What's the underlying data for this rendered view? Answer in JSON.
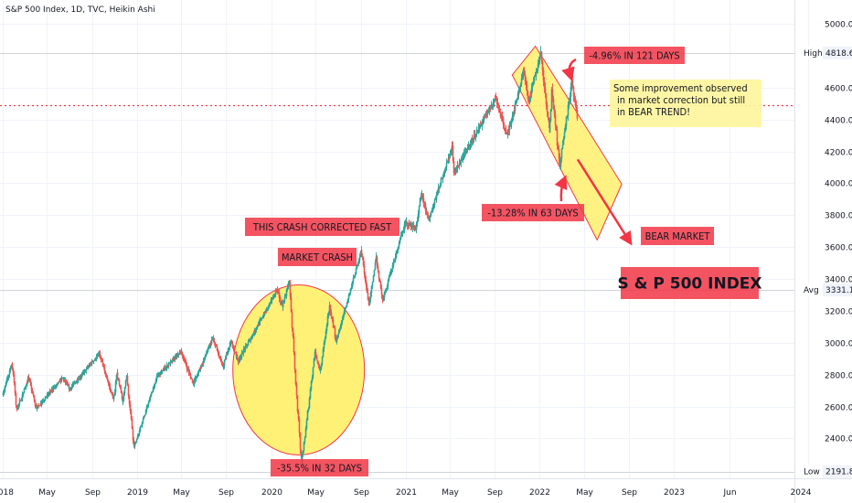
{
  "chart_data": {
    "type": "candlestick",
    "title": "S&P 500 Index, 1D, TVC, Heikin Ashi",
    "ylim": [
      2150,
      5150
    ],
    "y_ticks": [
      2400,
      2600,
      2800,
      3000,
      3200,
      3400,
      3600,
      3800,
      4000,
      4200,
      4400,
      4600,
      5000
    ],
    "y_tick_labels": [
      "2400.00",
      "2600.00",
      "2800.00",
      "3000.00",
      "3200.00",
      "3400.00",
      "3600.00",
      "3800.00",
      "4000.00",
      "4200.00",
      "4400.00",
      "4600.00",
      "5000.00"
    ],
    "x_range": [
      "2018-01-01",
      "2024-01-01"
    ],
    "x_ticks": [
      {
        "date": "2018-01-01",
        "label": "2018"
      },
      {
        "date": "2018-05-01",
        "label": "May"
      },
      {
        "date": "2018-09-01",
        "label": "Sep"
      },
      {
        "date": "2019-01-01",
        "label": "2019"
      },
      {
        "date": "2019-05-01",
        "label": "May"
      },
      {
        "date": "2019-09-01",
        "label": "Sep"
      },
      {
        "date": "2020-01-01",
        "label": "2020"
      },
      {
        "date": "2020-05-01",
        "label": "May"
      },
      {
        "date": "2020-09-01",
        "label": "Sep"
      },
      {
        "date": "2021-01-01",
        "label": "2021"
      },
      {
        "date": "2021-05-01",
        "label": "May"
      },
      {
        "date": "2021-09-01",
        "label": "Sep"
      },
      {
        "date": "2022-01-01",
        "label": "2022"
      },
      {
        "date": "2022-05-01",
        "label": "May"
      },
      {
        "date": "2022-09-01",
        "label": "Sep"
      },
      {
        "date": "2023-01-01",
        "label": "2023"
      },
      {
        "date": "2023-06-01",
        "label": "Jun"
      },
      {
        "date": "2024-01-01",
        "label": "2024"
      }
    ],
    "price_path": [
      [
        "2018-01-01",
        2680
      ],
      [
        "2018-01-26",
        2870
      ],
      [
        "2018-02-08",
        2580
      ],
      [
        "2018-03-12",
        2780
      ],
      [
        "2018-04-02",
        2590
      ],
      [
        "2018-06-12",
        2780
      ],
      [
        "2018-07-02",
        2710
      ],
      [
        "2018-09-20",
        2930
      ],
      [
        "2018-10-29",
        2640
      ],
      [
        "2018-11-07",
        2810
      ],
      [
        "2018-11-23",
        2630
      ],
      [
        "2018-12-03",
        2790
      ],
      [
        "2018-12-24",
        2350
      ],
      [
        "2019-02-25",
        2790
      ],
      [
        "2019-04-30",
        2945
      ],
      [
        "2019-06-03",
        2745
      ],
      [
        "2019-07-26",
        3025
      ],
      [
        "2019-08-23",
        2847
      ],
      [
        "2019-09-12",
        3010
      ],
      [
        "2019-10-03",
        2887
      ],
      [
        "2020-01-17",
        3330
      ],
      [
        "2020-01-31",
        3225
      ],
      [
        "2020-02-19",
        3386
      ],
      [
        "2020-03-23",
        2237
      ],
      [
        "2020-04-29",
        2940
      ],
      [
        "2020-05-13",
        2820
      ],
      [
        "2020-06-08",
        3230
      ],
      [
        "2020-06-26",
        3010
      ],
      [
        "2020-09-02",
        3580
      ],
      [
        "2020-09-23",
        3237
      ],
      [
        "2020-10-12",
        3535
      ],
      [
        "2020-10-30",
        3270
      ],
      [
        "2020-12-31",
        3756
      ],
      [
        "2021-01-29",
        3714
      ],
      [
        "2021-02-12",
        3934
      ],
      [
        "2021-03-04",
        3768
      ],
      [
        "2021-05-07",
        4232
      ],
      [
        "2021-05-12",
        4063
      ],
      [
        "2021-09-02",
        4537
      ],
      [
        "2021-10-04",
        4300
      ],
      [
        "2021-11-18",
        4705
      ],
      [
        "2021-12-01",
        4513
      ],
      [
        "2022-01-03",
        4818
      ],
      [
        "2022-01-27",
        4326
      ],
      [
        "2022-02-02",
        4590
      ],
      [
        "2022-02-24",
        4114
      ],
      [
        "2022-03-29",
        4637
      ],
      [
        "2022-04-13",
        4400
      ]
    ],
    "reference_lines": {
      "high": 4818.62,
      "avg": 3331.19,
      "low": 2191.86,
      "dotted_red": 4490
    },
    "axis_badges": [
      {
        "name": "High",
        "value": "4818.62"
      },
      {
        "name": "Avg",
        "value": "3331.19"
      },
      {
        "name": "Low",
        "value": "2191.86"
      }
    ],
    "annotations": {
      "crash_corrected": "THIS CRASH CORRECTED FAST",
      "market_crash": "MARKET CRASH",
      "crash_pct": "-35.5% IN 32 DAYS",
      "peak_pct": "-4.96% IN 121 DAYS",
      "trough_pct": "-13.28% IN 63 DAYS",
      "bear_market": "BEAR MARKET",
      "index_name": "S & P 500 INDEX",
      "note_lines": [
        "Some improvement observed",
        "in market correction but still",
        "in BEAR TREND!"
      ]
    },
    "colors": {
      "up": "#26a69a",
      "down": "#ef5350",
      "annotation_red": "#f23645",
      "highlight_yellow": "#fff176",
      "note_yellow": "#fff59d"
    }
  }
}
